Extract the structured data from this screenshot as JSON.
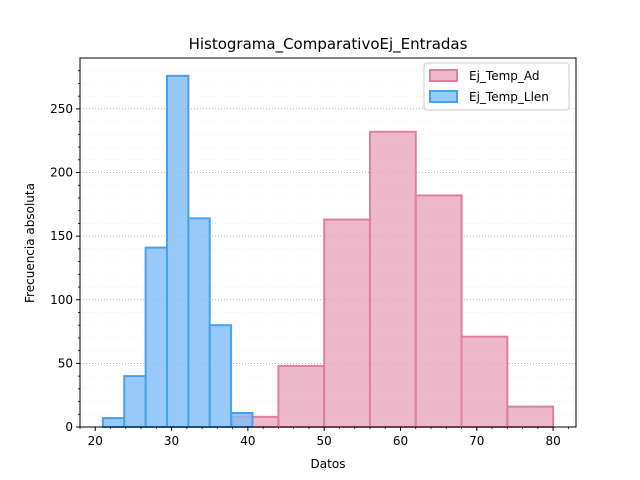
{
  "chart_data": {
    "type": "histogram",
    "title": "Histograma_ComparativoEj_Entradas",
    "xlabel": "Datos",
    "ylabel": "Frecuencia absoluta",
    "xlim": [
      18,
      83
    ],
    "ylim": [
      0,
      290
    ],
    "xticks": [
      20,
      30,
      40,
      50,
      60,
      70,
      80
    ],
    "yticks": [
      0,
      50,
      100,
      150,
      200,
      250
    ],
    "y_minor_step": 10,
    "x_minor_step": 2,
    "grid": {
      "y_major": true,
      "y_minor": true,
      "x": false
    },
    "legend_position": "top-right",
    "series": [
      {
        "name": "Ej_Temp_Ad",
        "fill": "#e8a6bb",
        "edge": "#e07f9e",
        "bins": [
          {
            "x0": 38,
            "x1": 44,
            "count": 8
          },
          {
            "x0": 44,
            "x1": 50,
            "count": 48
          },
          {
            "x0": 50,
            "x1": 56,
            "count": 163
          },
          {
            "x0": 56,
            "x1": 62,
            "count": 232
          },
          {
            "x0": 62,
            "x1": 68,
            "count": 182
          },
          {
            "x0": 68,
            "x1": 74,
            "count": 71
          },
          {
            "x0": 74,
            "x1": 80,
            "count": 16
          }
        ]
      },
      {
        "name": "Ej_Temp_Llen",
        "fill": "#7fbcf8",
        "edge": "#45a1f2",
        "bins": [
          {
            "x0": 21,
            "x1": 23.8,
            "count": 7
          },
          {
            "x0": 23.8,
            "x1": 26.6,
            "count": 40
          },
          {
            "x0": 26.6,
            "x1": 29.4,
            "count": 141
          },
          {
            "x0": 29.4,
            "x1": 32.2,
            "count": 276
          },
          {
            "x0": 32.2,
            "x1": 35,
            "count": 164
          },
          {
            "x0": 35,
            "x1": 37.8,
            "count": 80
          },
          {
            "x0": 37.8,
            "x1": 40.6,
            "count": 11
          }
        ]
      }
    ]
  }
}
